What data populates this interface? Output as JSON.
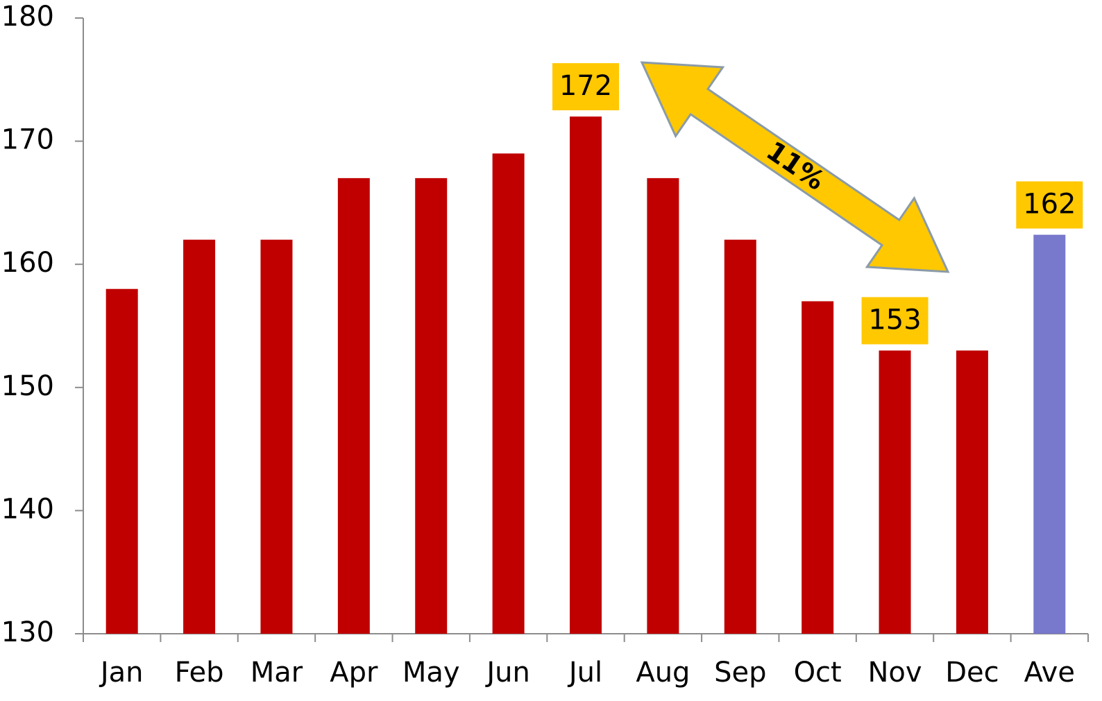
{
  "chart_data": {
    "type": "bar",
    "categories": [
      "Jan",
      "Feb",
      "Mar",
      "Apr",
      "May",
      "Jun",
      "Jul",
      "Aug",
      "Sep",
      "Oct",
      "Nov",
      "Dec",
      "Ave"
    ],
    "values": [
      158,
      162,
      162,
      167,
      167,
      169,
      172,
      167,
      162,
      157,
      153,
      153,
      162.4
    ],
    "value_labels": [
      null,
      null,
      null,
      null,
      null,
      null,
      "172",
      null,
      null,
      null,
      "153",
      null,
      "162"
    ],
    "colors": [
      "#c00000",
      "#c00000",
      "#c00000",
      "#c00000",
      "#c00000",
      "#c00000",
      "#c00000",
      "#c00000",
      "#c00000",
      "#c00000",
      "#c00000",
      "#c00000",
      "#7878cc"
    ],
    "label_box_color": "#ffc800",
    "ylim": [
      130,
      180
    ],
    "yticks": [
      130,
      140,
      150,
      160,
      170,
      180
    ],
    "grid": false,
    "annotations": [
      {
        "text": "11%"
      }
    ]
  }
}
